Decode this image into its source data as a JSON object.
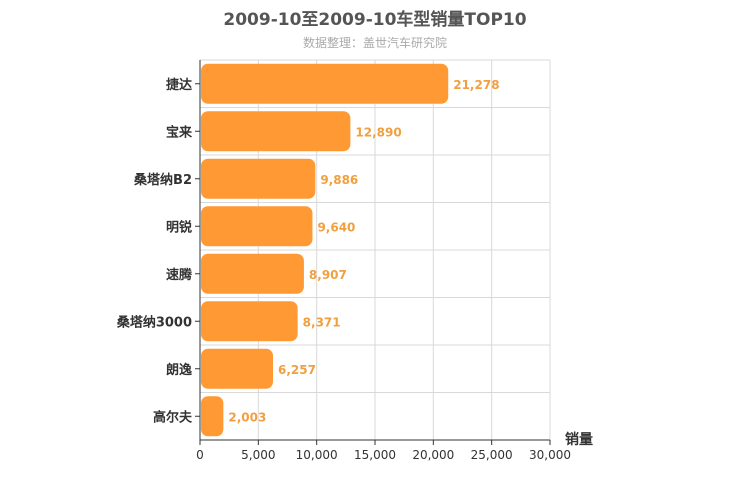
{
  "chart_data": {
    "type": "bar",
    "orientation": "horizontal",
    "title": "2009-10至2009-10车型销量TOP10",
    "subtitle": "数据整理：盖世汽车研究院",
    "xlabel": "销量",
    "categories": [
      "捷达",
      "宝来",
      "桑塔纳B2",
      "明锐",
      "速腾",
      "桑塔纳3000",
      "朗逸",
      "高尔夫"
    ],
    "values": [
      21278,
      12890,
      9886,
      9640,
      8907,
      8371,
      6257,
      2003
    ],
    "value_labels": [
      "21,278",
      "12,890",
      "9,886",
      "9,640",
      "8,907",
      "8,371",
      "6,257",
      "2,003"
    ],
    "xlim": [
      0,
      30000
    ],
    "xticks": [
      0,
      5000,
      10000,
      15000,
      20000,
      25000,
      30000
    ],
    "xtick_labels": [
      "0",
      "5,000",
      "10,000",
      "15,000",
      "20,000",
      "25,000",
      "30,000"
    ],
    "grid": true,
    "bar_color": "#ff9933",
    "value_label_color": "#f0a040"
  }
}
